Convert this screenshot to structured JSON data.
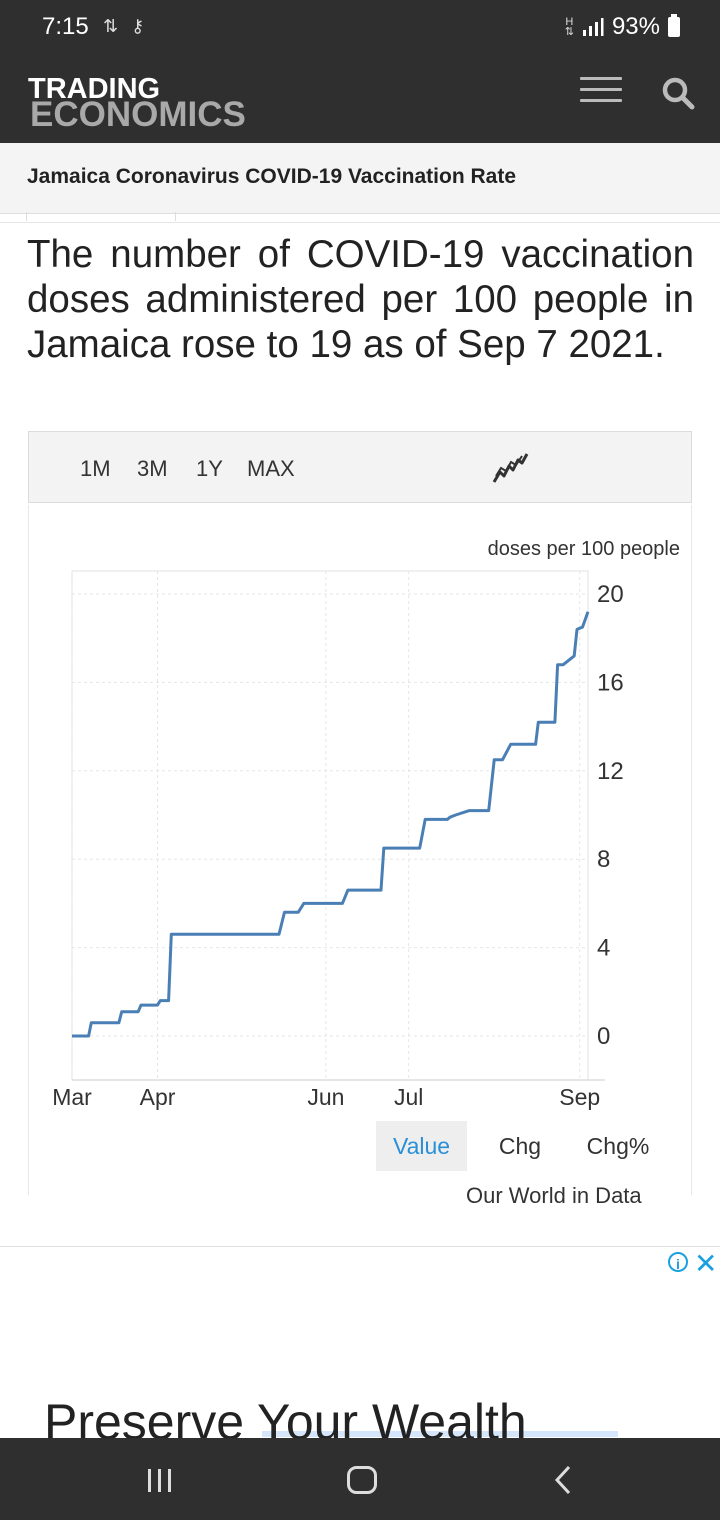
{
  "status_bar": {
    "time": "7:15",
    "signal_label": "H",
    "battery": "93%"
  },
  "header": {
    "logo_line1": "TRADING",
    "logo_line2": "ECONOMICS"
  },
  "page": {
    "title": "Jamaica Coronavirus COVID-19 Vaccination Rate",
    "description": "The number of COVID-19 vaccination doses administered per 100 people in Jamaica rose to 19 as of Sep 7 2021."
  },
  "chart_controls": {
    "ranges": [
      "1M",
      "3M",
      "1Y",
      "MAX"
    ],
    "chart_type_icon": "line-chart-icon"
  },
  "chart_data": {
    "type": "line",
    "title": "",
    "ylabel": "doses per 100 people",
    "xlabel": "",
    "x_ticks": [
      "Mar",
      "Apr",
      "Jun",
      "Jul",
      "Sep"
    ],
    "y_ticks": [
      0,
      4,
      8,
      12,
      16,
      20
    ],
    "ylim": [
      -1,
      21
    ],
    "xlim": [
      0,
      187
    ],
    "series": [
      {
        "name": "Jamaica",
        "color": "#4a7fb5",
        "x": [
          0,
          6,
          7,
          17,
          18,
          24,
          25,
          31,
          32,
          35,
          36,
          48,
          49,
          75,
          77,
          82,
          84,
          98,
          100,
          112,
          113,
          126,
          128,
          136,
          137,
          139,
          144,
          151,
          153,
          154,
          156,
          159,
          168,
          169,
          175,
          176,
          178,
          182,
          183,
          185,
          187
        ],
        "values": [
          0,
          0,
          0.6,
          0.6,
          1.1,
          1.1,
          1.4,
          1.4,
          1.6,
          1.6,
          4.6,
          4.6,
          4.6,
          4.6,
          5.6,
          5.6,
          6.0,
          6.0,
          6.6,
          6.6,
          8.5,
          8.5,
          9.8,
          9.8,
          9.9,
          10.0,
          10.2,
          10.2,
          12.5,
          12.5,
          12.5,
          13.2,
          13.2,
          14.2,
          14.2,
          16.8,
          16.8,
          17.2,
          18.4,
          18.5,
          19.2
        ]
      }
    ],
    "grid": true,
    "value_tabs": [
      "Value",
      "Chg",
      "Chg%"
    ],
    "active_tab": "Value",
    "source": "Our World in Data"
  },
  "ad": {
    "headline": "Preserve Your Wealth"
  }
}
